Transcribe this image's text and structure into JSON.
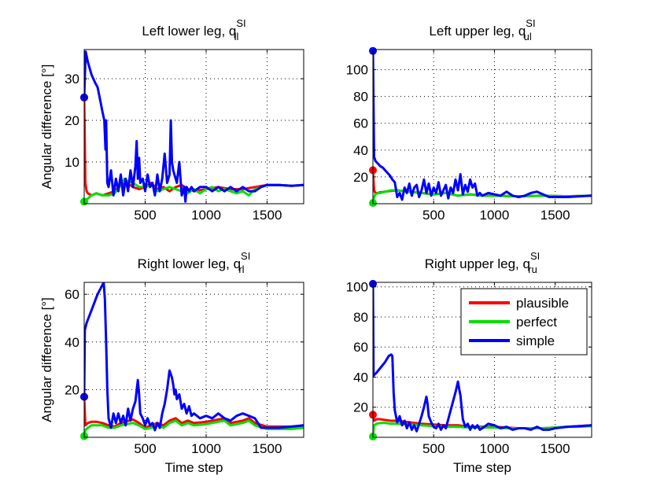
{
  "colors": {
    "plausible": "#ff0000",
    "perfect": "#00e000",
    "simple": "#0000ff"
  },
  "legend": {
    "location": "top-right",
    "entries": [
      "plausible",
      "perfect",
      "simple"
    ]
  },
  "chart_data": [
    {
      "type": "line",
      "title": "Left lower leg, ",
      "title_symbol": "q",
      "title_sup": "SI",
      "title_sub": "ll",
      "xlabel": "",
      "ylabel": "Angular difference [°]",
      "xlim": [
        0,
        1800
      ],
      "ylim": [
        0,
        37
      ],
      "xticks": [
        500,
        1000,
        1500
      ],
      "yticks": [
        10,
        20,
        30
      ],
      "grid": true,
      "start_markers": {
        "plausible": 25.5,
        "perfect": 0.5,
        "simple": 25.5
      },
      "series": [
        {
          "name": "simple",
          "x": [
            0,
            12,
            30,
            60,
            90,
            110,
            130,
            150,
            165,
            175,
            180,
            190,
            200,
            220,
            240,
            260,
            280,
            300,
            320,
            340,
            360,
            380,
            400,
            420,
            430,
            440,
            450,
            460,
            480,
            500,
            520,
            540,
            560,
            580,
            600,
            620,
            640,
            660,
            680,
            700,
            710,
            720,
            730,
            740,
            760,
            780,
            800,
            820,
            830,
            840,
            860,
            880,
            900,
            950,
            1000,
            1050,
            1100,
            1150,
            1200,
            1250,
            1300,
            1350,
            1400,
            1450,
            1500,
            1600,
            1700,
            1800
          ],
          "y": [
            25.5,
            36.5,
            34,
            31,
            29,
            28,
            25,
            22,
            20,
            13,
            20,
            5,
            4,
            8,
            2,
            6,
            3,
            7,
            2,
            6,
            3,
            8,
            4,
            9,
            15,
            6,
            11,
            5,
            6,
            3,
            7,
            4,
            5,
            2,
            7,
            3,
            6,
            12,
            5,
            7,
            20,
            10,
            8,
            7,
            5,
            10,
            2,
            4,
            0.5,
            4,
            3,
            4,
            3,
            4,
            4,
            3,
            4,
            3,
            4,
            3,
            4,
            3,
            3,
            4,
            4.5,
            4.5,
            4.3,
            4.5
          ]
        },
        {
          "name": "plausible",
          "x": [
            0,
            10,
            20,
            30,
            60,
            100,
            150,
            200,
            250,
            300,
            350,
            400,
            450,
            500,
            550,
            600,
            650,
            700,
            750,
            800,
            850,
            900,
            1000,
            1100,
            1200,
            1300,
            1400,
            1500,
            1600,
            1700,
            1800
          ],
          "y": [
            25.5,
            5,
            3,
            2.5,
            2,
            2.5,
            2,
            2.5,
            3,
            4.5,
            5,
            4,
            3.5,
            4,
            5,
            3.5,
            4,
            3,
            4,
            4.5,
            3.5,
            3,
            3.5,
            4,
            3.5,
            3.5,
            4,
            4.5,
            4.5,
            4.3,
            4.5
          ]
        },
        {
          "name": "perfect",
          "x": [
            0,
            20,
            40,
            60,
            100,
            150,
            200,
            250,
            300,
            330,
            350,
            400,
            450,
            500,
            550,
            600,
            650,
            700,
            750,
            800,
            850,
            900,
            950,
            1000,
            1050,
            1100,
            1150,
            1200,
            1250,
            1300,
            1350,
            1400,
            1500,
            1600,
            1700,
            1800
          ],
          "y": [
            0.5,
            1,
            1.5,
            2,
            2.5,
            2,
            2,
            2.5,
            4.5,
            6,
            5.5,
            5,
            4,
            4,
            4.5,
            3,
            3.5,
            4,
            3.5,
            3,
            2.5,
            3.5,
            2.5,
            3.5,
            4,
            3,
            3.5,
            3,
            2.5,
            3,
            2,
            3.5,
            4.5,
            4.5,
            4.3,
            4.5
          ]
        }
      ]
    },
    {
      "type": "line",
      "title": "Left upper leg, ",
      "title_symbol": "q",
      "title_sup": "SI",
      "title_sub": "ul",
      "xlabel": "",
      "ylabel": "",
      "xlim": [
        0,
        1800
      ],
      "ylim": [
        0,
        115
      ],
      "xticks": [
        500,
        1000,
        1500
      ],
      "yticks": [
        20,
        40,
        60,
        80,
        100
      ],
      "grid": true,
      "start_markers": {
        "plausible": 25,
        "perfect": 0.5,
        "simple": 114
      },
      "series": [
        {
          "name": "simple",
          "x": [
            0,
            10,
            20,
            40,
            60,
            80,
            100,
            120,
            140,
            160,
            180,
            200,
            220,
            240,
            260,
            280,
            300,
            320,
            340,
            360,
            380,
            400,
            420,
            440,
            460,
            480,
            500,
            520,
            540,
            560,
            580,
            600,
            620,
            640,
            660,
            680,
            700,
            720,
            740,
            760,
            780,
            800,
            820,
            840,
            860,
            880,
            900,
            950,
            1000,
            1050,
            1100,
            1150,
            1200,
            1250,
            1300,
            1350,
            1400,
            1450,
            1500,
            1600,
            1700,
            1800
          ],
          "y": [
            114,
            35,
            32,
            30,
            28,
            27,
            25,
            23,
            21,
            18,
            16,
            5,
            8,
            3,
            12,
            8,
            15,
            6,
            12,
            14,
            5,
            10,
            18,
            8,
            15,
            6,
            12,
            8,
            16,
            6,
            10,
            14,
            4,
            12,
            8,
            18,
            10,
            22,
            7,
            14,
            9,
            18,
            12,
            15,
            6,
            8,
            6,
            8,
            7,
            6,
            9,
            6,
            5,
            6,
            8,
            9,
            7,
            5,
            5,
            5,
            5.5,
            6
          ]
        },
        {
          "name": "plausible",
          "x": [
            0,
            10,
            20,
            40,
            60,
            100,
            150,
            200,
            300,
            400,
            500,
            600,
            700,
            800,
            900,
            1000,
            1200,
            1400,
            1600,
            1800
          ],
          "y": [
            25,
            10,
            8,
            8,
            8.5,
            9,
            9.5,
            10,
            9,
            8,
            7,
            8,
            6,
            7,
            6,
            6,
            5.5,
            6,
            5.5,
            6
          ]
        },
        {
          "name": "perfect",
          "x": [
            0,
            10,
            20,
            40,
            60,
            100,
            150,
            200,
            300,
            400,
            500,
            600,
            700,
            800,
            900,
            1000,
            1200,
            1400,
            1600,
            1800
          ],
          "y": [
            0.5,
            5,
            7,
            8,
            8,
            9,
            10,
            10,
            9,
            8,
            7,
            8,
            6,
            7,
            6,
            6,
            5.5,
            6,
            5.5,
            6
          ]
        }
      ]
    },
    {
      "type": "line",
      "title": "Right lower leg, ",
      "title_symbol": "q",
      "title_sup": "SI",
      "title_sub": "rl",
      "xlabel": "Time step",
      "ylabel": "Angular difference [°]",
      "xlim": [
        0,
        1800
      ],
      "ylim": [
        0,
        65
      ],
      "xticks": [
        500,
        1000,
        1500
      ],
      "yticks": [
        20,
        40,
        60
      ],
      "grid": true,
      "start_markers": {
        "plausible": 17,
        "perfect": 0.5,
        "simple": 17
      },
      "series": [
        {
          "name": "simple",
          "x": [
            0,
            5,
            20,
            50,
            80,
            110,
            130,
            150,
            160,
            170,
            180,
            190,
            200,
            220,
            240,
            260,
            280,
            300,
            320,
            340,
            360,
            380,
            400,
            420,
            440,
            450,
            460,
            480,
            500,
            520,
            540,
            560,
            580,
            600,
            620,
            640,
            660,
            680,
            700,
            720,
            730,
            740,
            750,
            760,
            780,
            800,
            820,
            840,
            860,
            880,
            900,
            950,
            1000,
            1050,
            1100,
            1150,
            1200,
            1250,
            1300,
            1350,
            1400,
            1450,
            1500,
            1600,
            1700,
            1800
          ],
          "y": [
            17,
            45,
            48,
            52,
            56,
            60,
            62,
            64,
            65,
            58,
            40,
            20,
            8,
            4,
            10,
            6,
            10,
            6,
            9,
            5,
            12,
            7,
            12,
            15,
            24,
            18,
            10,
            8,
            5,
            8,
            5,
            6,
            3,
            6,
            4,
            10,
            14,
            20,
            28,
            25,
            22,
            18,
            20,
            16,
            18,
            12,
            14,
            10,
            13,
            9,
            10,
            8,
            9,
            8,
            10,
            8,
            7,
            9,
            10,
            9,
            8,
            4,
            4,
            4,
            4.5,
            5
          ]
        },
        {
          "name": "plausible",
          "x": [
            0,
            10,
            30,
            60,
            100,
            150,
            200,
            250,
            300,
            400,
            450,
            500,
            550,
            600,
            650,
            700,
            750,
            800,
            850,
            900,
            1000,
            1100,
            1150,
            1200,
            1300,
            1350,
            1400,
            1500,
            1600,
            1700,
            1800
          ],
          "y": [
            17,
            5,
            6,
            6.5,
            6.5,
            6,
            5,
            4.5,
            6,
            7.5,
            6,
            4,
            5,
            6,
            5,
            7,
            8,
            6,
            7,
            6,
            6.5,
            7.5,
            8,
            6,
            7,
            8,
            6,
            4.5,
            4.5,
            4.5,
            5
          ]
        },
        {
          "name": "perfect",
          "x": [
            0,
            10,
            30,
            60,
            100,
            150,
            200,
            250,
            300,
            400,
            450,
            500,
            550,
            600,
            650,
            700,
            750,
            800,
            850,
            900,
            1000,
            1100,
            1150,
            1200,
            1300,
            1350,
            1400,
            1500,
            1600,
            1700,
            1800
          ],
          "y": [
            0.5,
            3,
            4,
            5,
            5,
            5,
            4,
            4,
            5,
            6,
            5,
            3.5,
            4,
            5,
            4,
            6,
            7,
            5,
            6,
            5,
            5.5,
            6.5,
            7,
            5,
            6,
            7,
            5,
            3.5,
            3.5,
            3.5,
            4
          ]
        }
      ]
    },
    {
      "type": "line",
      "title": "Right upper leg, ",
      "title_symbol": "q",
      "title_sup": "SI",
      "title_sub": "ru",
      "xlabel": "Time step",
      "ylabel": "",
      "xlim": [
        0,
        1800
      ],
      "ylim": [
        0,
        103
      ],
      "xticks": [
        500,
        1000,
        1500
      ],
      "yticks": [
        20,
        40,
        60,
        80,
        100
      ],
      "grid": true,
      "start_markers": {
        "plausible": 15,
        "perfect": 0.5,
        "simple": 102
      },
      "series": [
        {
          "name": "simple",
          "x": [
            0,
            5,
            30,
            60,
            100,
            130,
            150,
            160,
            170,
            180,
            200,
            220,
            240,
            260,
            280,
            300,
            320,
            340,
            360,
            380,
            400,
            420,
            440,
            450,
            460,
            480,
            500,
            520,
            540,
            560,
            580,
            600,
            620,
            640,
            660,
            680,
            700,
            710,
            720,
            730,
            740,
            760,
            780,
            800,
            820,
            840,
            860,
            880,
            900,
            950,
            1000,
            1050,
            1100,
            1150,
            1200,
            1250,
            1300,
            1350,
            1400,
            1450,
            1500,
            1600,
            1700,
            1800
          ],
          "y": [
            102,
            41,
            43,
            46,
            50,
            54,
            55,
            54,
            30,
            18,
            10,
            14,
            8,
            11,
            6,
            10,
            5,
            8,
            4,
            9,
            14,
            20,
            27,
            22,
            14,
            10,
            7,
            6,
            9,
            5,
            8,
            6,
            12,
            18,
            24,
            30,
            37,
            32,
            28,
            20,
            12,
            7,
            9,
            5,
            8,
            6,
            8,
            5,
            6,
            9,
            8,
            6,
            7,
            5,
            6,
            6,
            5,
            7,
            5,
            5,
            6,
            7,
            7.5,
            8
          ]
        },
        {
          "name": "plausible",
          "x": [
            0,
            10,
            30,
            60,
            100,
            150,
            200,
            300,
            400,
            500,
            600,
            700,
            800,
            900,
            1000,
            1100,
            1200,
            1300,
            1400,
            1500,
            1600,
            1700,
            1800
          ],
          "y": [
            15,
            11,
            12,
            12,
            11.5,
            11,
            11,
            10,
            9,
            8.5,
            8,
            8,
            7,
            7,
            7,
            6.5,
            6,
            6,
            6,
            6.5,
            7,
            7.5,
            8
          ]
        },
        {
          "name": "perfect",
          "x": [
            0,
            10,
            30,
            60,
            100,
            150,
            200,
            300,
            400,
            500,
            600,
            700,
            800,
            900,
            1000,
            1100,
            1200,
            1300,
            1400,
            1500,
            1600,
            1700,
            1800
          ],
          "y": [
            0.5,
            8,
            9,
            9.5,
            9.5,
            9,
            9,
            8.5,
            8,
            7.5,
            7,
            7,
            6.5,
            6.5,
            6.5,
            6,
            6,
            6,
            6,
            6.5,
            7,
            7,
            7.5
          ]
        }
      ]
    }
  ]
}
